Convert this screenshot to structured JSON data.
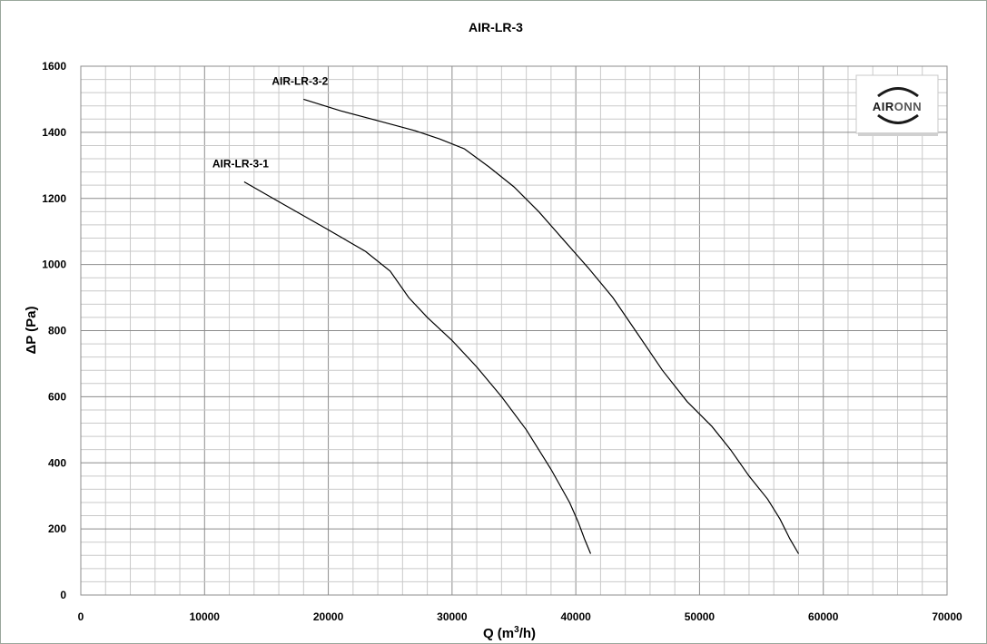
{
  "chart_data": {
    "type": "line",
    "title": "AIR-LR-3",
    "xlabel": "Q (m³/h)",
    "ylabel": "ΔP (Pa)",
    "xlim": [
      0,
      70000
    ],
    "ylim": [
      0,
      1600
    ],
    "x_ticks": [
      0,
      10000,
      20000,
      30000,
      40000,
      50000,
      60000,
      70000
    ],
    "y_ticks": [
      0,
      200,
      400,
      600,
      800,
      1000,
      1200,
      1400,
      1600
    ],
    "x_minor_step": 2000,
    "y_minor_step": 40,
    "grid": true,
    "series": [
      {
        "name": "AIR-LR-3-1",
        "color": "#000000",
        "points": [
          [
            13200,
            1250
          ],
          [
            16000,
            1190
          ],
          [
            20000,
            1105
          ],
          [
            23000,
            1040
          ],
          [
            25000,
            980
          ],
          [
            26500,
            900
          ],
          [
            28000,
            840
          ],
          [
            30000,
            770
          ],
          [
            32000,
            690
          ],
          [
            34000,
            600
          ],
          [
            36000,
            500
          ],
          [
            38000,
            380
          ],
          [
            39500,
            280
          ],
          [
            40200,
            220
          ],
          [
            40700,
            170
          ],
          [
            41200,
            125
          ]
        ]
      },
      {
        "name": "AIR-LR-3-2",
        "color": "#000000",
        "points": [
          [
            18000,
            1500
          ],
          [
            21000,
            1465
          ],
          [
            24000,
            1435
          ],
          [
            27000,
            1405
          ],
          [
            29000,
            1380
          ],
          [
            31000,
            1350
          ],
          [
            33000,
            1295
          ],
          [
            35000,
            1235
          ],
          [
            37000,
            1160
          ],
          [
            39000,
            1075
          ],
          [
            41000,
            990
          ],
          [
            43000,
            900
          ],
          [
            45000,
            790
          ],
          [
            47000,
            680
          ],
          [
            49000,
            585
          ],
          [
            51000,
            510
          ],
          [
            52500,
            440
          ],
          [
            54000,
            360
          ],
          [
            55500,
            290
          ],
          [
            56500,
            230
          ],
          [
            57300,
            170
          ],
          [
            58000,
            125
          ]
        ]
      }
    ]
  },
  "logo": {
    "text_dark": "AIR",
    "text_light": "ONN",
    "color_dark": "#1a1a1a",
    "color_light": "#555555"
  }
}
